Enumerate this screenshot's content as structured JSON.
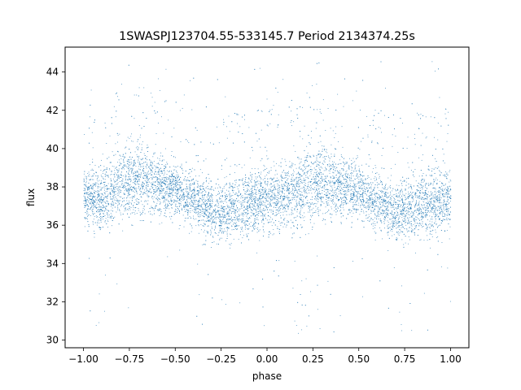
{
  "chart_data": {
    "type": "scatter",
    "title": "1SWASPJ123704.55-533145.7 Period 2134374.25s",
    "xlabel": "phase",
    "ylabel": "flux",
    "xlim": [
      -1.1,
      1.1
    ],
    "ylim": [
      29.6,
      45.3
    ],
    "xticks": [
      -1.0,
      -0.75,
      -0.5,
      -0.25,
      0.0,
      0.25,
      0.5,
      0.75,
      1.0
    ],
    "xtick_labels": [
      "−1.00",
      "−0.75",
      "−0.50",
      "−0.25",
      "0.00",
      "0.25",
      "0.50",
      "0.75",
      "1.00"
    ],
    "yticks": [
      30,
      32,
      34,
      36,
      38,
      40,
      42,
      44
    ],
    "ytick_labels": [
      "30",
      "32",
      "34",
      "36",
      "38",
      "40",
      "42",
      "44"
    ],
    "grid": false,
    "legend": "none",
    "marker_color": "#1f77b4",
    "description_of_points": "Dense cloud of tiny blue points; phase-folded light curve repeated twice over phase -1 to 1. Main band flux ~35-40, with faint outliers between 30 and 44.",
    "trend": {
      "phase": [
        -1.0,
        -0.9,
        -0.8,
        -0.7,
        -0.6,
        -0.5,
        -0.4,
        -0.3,
        -0.2,
        -0.1,
        0.0,
        0.1,
        0.2,
        0.3,
        0.4,
        0.5,
        0.6,
        0.7,
        0.8,
        0.9,
        1.0
      ],
      "flux": [
        37.6,
        37.4,
        38.2,
        38.4,
        38.2,
        37.9,
        37.4,
        36.7,
        36.9,
        37.2,
        37.4,
        37.6,
        38.0,
        38.3,
        38.1,
        37.8,
        37.2,
        36.8,
        37.0,
        37.2,
        37.4
      ],
      "spread": [
        1.2,
        1.3,
        1.6,
        1.7,
        1.3,
        1.1,
        1.1,
        1.2,
        1.3,
        1.4,
        1.3,
        1.4,
        1.6,
        1.7,
        1.3,
        1.1,
        1.1,
        1.2,
        1.3,
        1.4,
        1.2
      ]
    },
    "approx_point_count": 14000
  }
}
